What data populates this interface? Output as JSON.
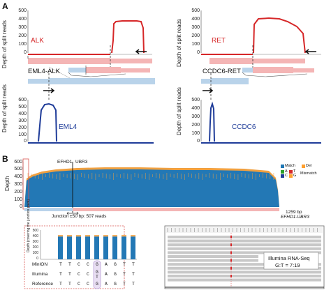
{
  "panel_a": {
    "letter": "A",
    "ylabel": "Depth of split reads",
    "alk": {
      "gene": "ALK",
      "yticks": [
        "500",
        "400",
        "300",
        "200",
        "100",
        "0"
      ]
    },
    "ret": {
      "gene": "RET",
      "yticks": [
        "500",
        "400",
        "300",
        "200",
        "100",
        "0"
      ]
    },
    "eml4": {
      "gene": "EML4",
      "yticks": [
        "600",
        "500",
        "400",
        "300",
        "200",
        "100",
        "0"
      ]
    },
    "ccdc6": {
      "gene": "CCDC6",
      "yticks": [
        "500",
        "400",
        "300",
        "200",
        "100",
        "0"
      ]
    },
    "fusion_left": "EML4-ALK",
    "fusion_right": "CCDC6-RET"
  },
  "panel_b": {
    "letter": "B",
    "ylabel": "Depth",
    "yticks": [
      "600",
      "500",
      "400",
      "300",
      "200",
      "100",
      "0"
    ],
    "gene_left": "EFHD1",
    "gene_right": "UBR3",
    "legend": {
      "match": "Match",
      "del": "Del",
      "a": "A",
      "t": "T",
      "c": "C",
      "g": "G",
      "mismatch": "Mismatch"
    },
    "colors": {
      "match": "#1f77b4",
      "del": "#ff9f2e",
      "a": "#2ca02c",
      "t": "#d62728",
      "c": "#1f3c99",
      "g": "#ff9f2e"
    },
    "junction_note": "Junction ±50 bp: 507 reads",
    "length": "1259 bp",
    "fusion_name": "EFHD1-UBR3",
    "inset": {
      "ylabel": "Depth (covering the junction point)",
      "bases_minion": [
        "T",
        "T",
        "C",
        "C",
        "G",
        "A",
        "G",
        "T",
        "T"
      ],
      "bases_illumina": [
        "T",
        "T",
        "C",
        "C",
        "G",
        "A",
        "G",
        "T",
        "T"
      ],
      "bases_reference": [
        "T",
        "T",
        "C",
        "C",
        "G",
        "A",
        "G",
        "T",
        "T"
      ],
      "alt_base": "T",
      "row_minion": "MinION",
      "row_illumina": "Illumina",
      "row_reference": "Reference",
      "bar_values": [
        390,
        390,
        390,
        390,
        390,
        390,
        390,
        390,
        390
      ],
      "yticks": [
        "500",
        "400",
        "300",
        "200",
        "100",
        "0"
      ]
    },
    "igv": {
      "title": "Illumina RNA-Seq",
      "ratio": "G:T = 7:19"
    }
  }
}
